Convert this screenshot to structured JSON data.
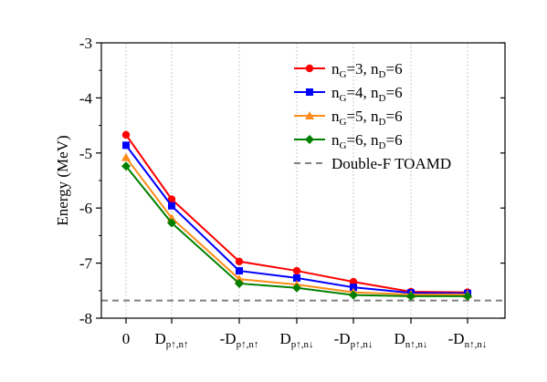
{
  "chart_data": {
    "type": "line",
    "title": "",
    "xlabel": "",
    "ylabel": "Energy (MeV)",
    "ylim": [
      -8,
      -3
    ],
    "yticks": [
      "-3",
      "-4",
      "-5",
      "-6",
      "-7",
      "-8"
    ],
    "grid": "vertical dotted",
    "legend_position": "top-right",
    "categories": [
      {
        "main": "0",
        "sub": ""
      },
      {
        "main": "D",
        "sub": "p↑,n↑"
      },
      {
        "main": "-D",
        "sub": "p↑,n↑"
      },
      {
        "main": "D",
        "sub": "p↑,n↓"
      },
      {
        "main": "-D",
        "sub": "p↑,n↓"
      },
      {
        "main": "D",
        "sub": "n↑,n↓"
      },
      {
        "main": "-D",
        "sub": "n↑,n↓"
      }
    ],
    "series": [
      {
        "legend": {
          "n1": "n",
          "s1": "G",
          "t1": "=3, ",
          "n2": "n",
          "s2": "D",
          "t2": "=6"
        },
        "color": "#ff0000",
        "marker": "circle",
        "values": [
          -4.67,
          -5.84,
          -6.97,
          -7.14,
          -7.34,
          -7.52,
          -7.53
        ]
      },
      {
        "legend": {
          "n1": "n",
          "s1": "G",
          "t1": "=4, ",
          "n2": "n",
          "s2": "D",
          "t2": "=6"
        },
        "color": "#0000ff",
        "marker": "square",
        "values": [
          -4.86,
          -5.96,
          -7.14,
          -7.27,
          -7.44,
          -7.54,
          -7.55
        ]
      },
      {
        "legend": {
          "n1": "n",
          "s1": "G",
          "t1": "=5, ",
          "n2": "n",
          "s2": "D",
          "t2": "=6"
        },
        "color": "#ff8c1a",
        "marker": "triangle",
        "values": [
          -5.08,
          -6.18,
          -7.29,
          -7.39,
          -7.53,
          -7.57,
          -7.57
        ]
      },
      {
        "legend": {
          "n1": "n",
          "s1": "G",
          "t1": "=6, ",
          "n2": "n",
          "s2": "D",
          "t2": "=6"
        },
        "color": "#008000",
        "marker": "diamond",
        "values": [
          -5.24,
          -6.27,
          -7.37,
          -7.45,
          -7.58,
          -7.6,
          -7.6
        ]
      }
    ],
    "reference_line": {
      "label": "Double-F TOAMD",
      "value": -7.68,
      "color": "#808080",
      "style": "dashed"
    }
  }
}
